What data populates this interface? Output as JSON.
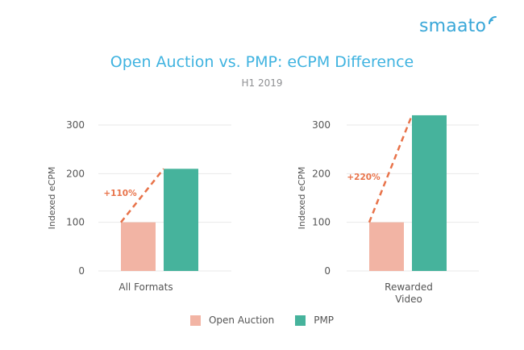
{
  "brand": {
    "logo_text": "smaato",
    "logo_color": "#39a7d8"
  },
  "header": {
    "title": "Open Auction vs. PMP: eCPM Difference",
    "subtitle": "H1 2019"
  },
  "legend": {
    "items": [
      {
        "label": "Open Auction",
        "color": "#f2b4a4"
      },
      {
        "label": "PMP",
        "color": "#46b39c"
      }
    ]
  },
  "chart_data": [
    {
      "type": "bar",
      "title": "",
      "xlabel": "",
      "ylabel": "Indexed eCPM",
      "ylim": [
        0,
        300
      ],
      "yticks": [
        0,
        100,
        200,
        300
      ],
      "categories": [
        "All Formats"
      ],
      "series": [
        {
          "name": "Open Auction",
          "values": [
            100
          ],
          "color": "#f2b4a4"
        },
        {
          "name": "PMP",
          "values": [
            210
          ],
          "color": "#46b39c"
        }
      ],
      "annotation": {
        "text": "+110%",
        "color": "#e8734a"
      },
      "grid": true
    },
    {
      "type": "bar",
      "title": "",
      "xlabel": "",
      "ylabel": "Indexed eCPM",
      "ylim": [
        0,
        300
      ],
      "yticks": [
        0,
        100,
        200,
        300
      ],
      "categories": [
        "Rewarded Video"
      ],
      "series": [
        {
          "name": "Open Auction",
          "values": [
            100
          ],
          "color": "#f2b4a4"
        },
        {
          "name": "PMP",
          "values": [
            320
          ],
          "color": "#46b39c"
        }
      ],
      "annotation": {
        "text": "+220%",
        "color": "#e8734a"
      },
      "grid": true
    }
  ]
}
